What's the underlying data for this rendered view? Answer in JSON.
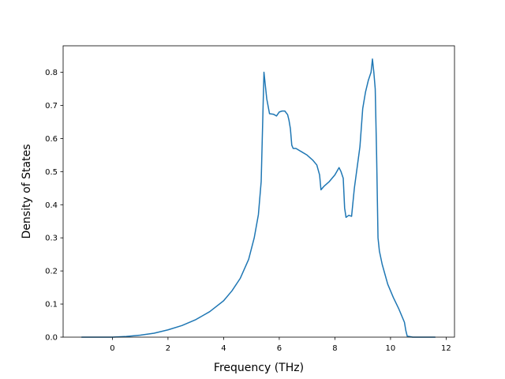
{
  "chart_data": {
    "type": "line",
    "title": "",
    "xlabel": "Frequency (THz)",
    "ylabel": "Density of States",
    "xlim": [
      -1.77,
      12.3
    ],
    "ylim": [
      0,
      0.88
    ],
    "xticks": [
      0,
      2,
      4,
      6,
      8,
      10,
      12
    ],
    "xtick_labels": [
      "0",
      "2",
      "4",
      "6",
      "8",
      "10",
      "12"
    ],
    "yticks": [
      0.0,
      0.1,
      0.2,
      0.3,
      0.4,
      0.5,
      0.6,
      0.7,
      0.8
    ],
    "ytick_labels": [
      "0.0",
      "0.1",
      "0.2",
      "0.3",
      "0.4",
      "0.5",
      "0.6",
      "0.7",
      "0.8"
    ],
    "grid": false,
    "legend": "none",
    "line_color": "#1f77b4",
    "series": [
      {
        "x": [
          -1.1,
          -0.5,
          0.0,
          0.5,
          1.0,
          1.5,
          2.0,
          2.5,
          3.0,
          3.5,
          4.0,
          4.3,
          4.6,
          4.9,
          5.1,
          5.25,
          5.35,
          5.45,
          5.55,
          5.65,
          5.8,
          5.9,
          6.0,
          6.1,
          6.2,
          6.3,
          6.35,
          6.4,
          6.45,
          6.5,
          6.6,
          6.8,
          7.0,
          7.2,
          7.35,
          7.45,
          7.5,
          7.6,
          7.8,
          8.0,
          8.15,
          8.22,
          8.3,
          8.35,
          8.4,
          8.5,
          8.6,
          8.7,
          8.9,
          9.0,
          9.1,
          9.2,
          9.3,
          9.35,
          9.4,
          9.45,
          9.5,
          9.55,
          9.6,
          9.7,
          9.9,
          10.1,
          10.3,
          10.5,
          10.55,
          10.6,
          10.8,
          11.0,
          11.6
        ],
        "y": [
          0.0,
          0.0,
          0.0,
          0.002,
          0.006,
          0.012,
          0.022,
          0.035,
          0.053,
          0.077,
          0.11,
          0.14,
          0.178,
          0.235,
          0.3,
          0.37,
          0.47,
          0.8,
          0.72,
          0.675,
          0.673,
          0.668,
          0.68,
          0.683,
          0.683,
          0.672,
          0.655,
          0.63,
          0.58,
          0.57,
          0.57,
          0.56,
          0.55,
          0.535,
          0.52,
          0.49,
          0.445,
          0.455,
          0.47,
          0.49,
          0.512,
          0.5,
          0.48,
          0.39,
          0.362,
          0.368,
          0.365,
          0.45,
          0.575,
          0.69,
          0.74,
          0.775,
          0.8,
          0.84,
          0.8,
          0.75,
          0.55,
          0.3,
          0.26,
          0.22,
          0.16,
          0.12,
          0.085,
          0.045,
          0.02,
          0.003,
          0.0,
          0.0,
          0.0
        ]
      }
    ]
  }
}
